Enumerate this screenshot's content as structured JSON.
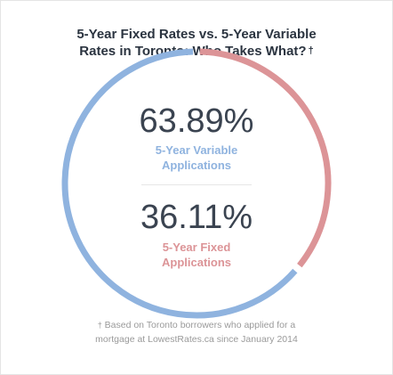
{
  "title": {
    "line1": "5-Year Fixed Rates vs. 5-Year Variable",
    "line2": "Rates in Toronto: Who Takes What?",
    "dagger": "†"
  },
  "chart_data": {
    "type": "pie",
    "style": "donut-ring",
    "slices": [
      {
        "value": 63.89,
        "value_label": "63.89%",
        "label_line1": "5-Year Variable",
        "label_line2": "Applications",
        "color": "#8fb3df"
      },
      {
        "value": 36.11,
        "value_label": "36.11%",
        "label_line1": "5-Year Fixed",
        "label_line2": "Applications",
        "color": "#dc9497"
      }
    ]
  },
  "footnote": {
    "dagger": "†",
    "line1": "Based on Toronto borrowers who applied for a",
    "line2": "mortgage at LowestRates.ca since January 2014"
  }
}
